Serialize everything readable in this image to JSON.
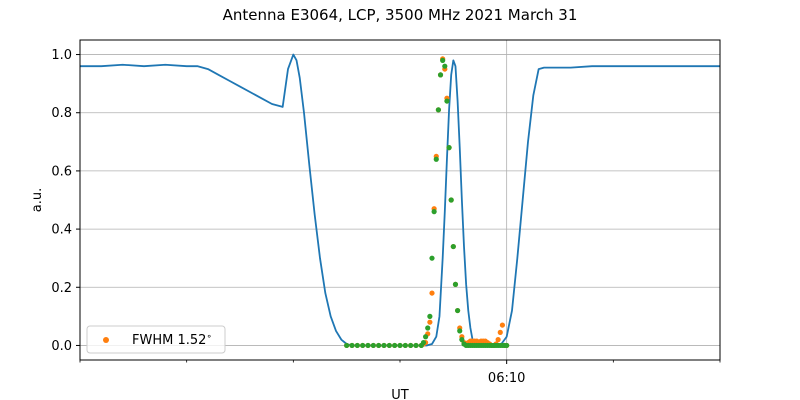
{
  "chart_data": {
    "type": "line",
    "title": "Antenna E3064, LCP, 3500 MHz 2021 March 31",
    "xlabel": "UT",
    "ylabel": "a.u.",
    "ylim": [
      -0.05,
      1.05
    ],
    "yticks": [
      0.0,
      0.2,
      0.4,
      0.6,
      0.8,
      1.0
    ],
    "ytick_labels": [
      "0.0",
      "0.2",
      "0.4",
      "0.6",
      "0.8",
      "1.0"
    ],
    "xlim_minutes": [
      -40,
      20
    ],
    "xticks_major": [
      {
        "min": 0,
        "label": "06:10"
      }
    ],
    "xticks_minor_minutes": [
      -40,
      -30,
      -20,
      -10,
      10,
      20
    ],
    "grid": true,
    "legend_position": "lower-left",
    "colors": {
      "line": "#1f77b4",
      "orange": "#ff7f0e",
      "green": "#2ca02c",
      "grid": "#b0b0b0"
    },
    "series": [
      {
        "kind": "line",
        "color": "#1f77b4",
        "x": [
          -40,
          -38,
          -36,
          -34,
          -32,
          -30,
          -29,
          -28,
          -27,
          -26,
          -25,
          -24,
          -23,
          -22,
          -21,
          -20.5,
          -20,
          -19.7,
          -19.4,
          -19,
          -18.5,
          -18,
          -17.5,
          -17,
          -16.5,
          -16,
          -15.5,
          -15,
          -14.5,
          -14,
          -13.5,
          -13,
          -12,
          -11,
          -10,
          -9,
          -8,
          -7.5,
          -7,
          -6.6,
          -6.3,
          -6,
          -5.8,
          -5.6,
          -5.4,
          -5.2,
          -5.0,
          -4.8,
          -4.6,
          -4.4,
          -4.2,
          -4.0,
          -3.8,
          -3.6,
          -3.4,
          -3.2,
          -3.0,
          -2.8,
          -2.6,
          -2.4,
          -2.2,
          -2.0,
          -1.5,
          -1,
          -0.5,
          0,
          0.5,
          1,
          1.5,
          2,
          2.5,
          3,
          3.5,
          4,
          6,
          8,
          10,
          12,
          14,
          16,
          18,
          20
        ],
        "y": [
          0.96,
          0.96,
          0.965,
          0.96,
          0.965,
          0.96,
          0.96,
          0.95,
          0.93,
          0.91,
          0.89,
          0.87,
          0.85,
          0.83,
          0.82,
          0.95,
          1.0,
          0.98,
          0.92,
          0.8,
          0.62,
          0.45,
          0.3,
          0.18,
          0.1,
          0.05,
          0.02,
          0.005,
          0.0,
          0.0,
          0.0,
          0.0,
          0.0,
          0.0,
          0.0,
          0.0,
          0.0,
          0.0,
          0.005,
          0.03,
          0.1,
          0.3,
          0.46,
          0.64,
          0.81,
          0.93,
          0.98,
          0.96,
          0.84,
          0.68,
          0.5,
          0.34,
          0.21,
          0.12,
          0.06,
          0.02,
          0.005,
          0.0,
          0.0,
          0.0,
          0.0,
          0.0,
          0.0,
          0.0,
          0.005,
          0.03,
          0.12,
          0.3,
          0.5,
          0.7,
          0.86,
          0.95,
          0.955,
          0.955,
          0.955,
          0.96,
          0.96,
          0.96,
          0.96,
          0.96,
          0.96,
          0.96
        ]
      },
      {
        "kind": "scatter",
        "name": "FWHM 1.52$^\\circ$",
        "color": "#ff7f0e",
        "x": [
          -15,
          -14.5,
          -14,
          -13.5,
          -13,
          -12.5,
          -12,
          -11.5,
          -11,
          -10.5,
          -10,
          -9.5,
          -9,
          -8.5,
          -8,
          -7.8,
          -7.6,
          -7.4,
          -7.2,
          -7.0,
          -6.8,
          -6.6,
          -6.4,
          -6.2,
          -6.0,
          -5.8,
          -5.6,
          -5.4,
          -5.2,
          -5.0,
          -4.8,
          -4.6,
          -4.4,
          -4.2,
          -4.0,
          -3.8,
          -3.6,
          -3.4,
          -3.2,
          -3.0,
          -2.8,
          -2.6,
          -2.4,
          -2.2,
          -2.0,
          -1.8,
          -1.6,
          -1.4,
          -1.2,
          -1.0,
          -0.8,
          -0.6,
          -0.4,
          -0.2,
          0.0
        ],
        "y": [
          0.0,
          0.0,
          0.0,
          0.0,
          0.0,
          0.0,
          0.0,
          0.0,
          0.0,
          0.0,
          0.0,
          0.0,
          0.0,
          0.0,
          0.0,
          0.005,
          0.01,
          0.04,
          0.08,
          0.18,
          0.47,
          0.65,
          0.81,
          0.93,
          0.985,
          0.95,
          0.85,
          0.68,
          0.5,
          0.34,
          0.21,
          0.12,
          0.06,
          0.03,
          0.01,
          0.005,
          0.01,
          0.015,
          0.015,
          0.015,
          0.015,
          0.01,
          0.015,
          0.015,
          0.015,
          0.01,
          0.005,
          0.0,
          0.0,
          0.005,
          0.02,
          0.045,
          0.07,
          0.0,
          0.0
        ]
      },
      {
        "kind": "scatter",
        "color": "#2ca02c",
        "x": [
          -15,
          -14.5,
          -14,
          -13.5,
          -13,
          -12.5,
          -12,
          -11.5,
          -11,
          -10.5,
          -10,
          -9.5,
          -9,
          -8.5,
          -8,
          -7.8,
          -7.6,
          -7.4,
          -7.2,
          -7.0,
          -6.8,
          -6.6,
          -6.4,
          -6.2,
          -6.0,
          -5.8,
          -5.6,
          -5.4,
          -5.2,
          -5.0,
          -4.8,
          -4.6,
          -4.4,
          -4.2,
          -4.0,
          -3.8,
          -3.6,
          -3.4,
          -3.2,
          -3.0,
          -2.8,
          -2.6,
          -2.4,
          -2.2,
          -2.0,
          -1.8,
          -1.6,
          -1.4,
          -1.2,
          -1.0,
          -0.8,
          -0.6,
          -0.4,
          -0.2,
          0.0
        ],
        "y": [
          0.0,
          0.0,
          0.0,
          0.0,
          0.0,
          0.0,
          0.0,
          0.0,
          0.0,
          0.0,
          0.0,
          0.0,
          0.0,
          0.0,
          0.0,
          0.01,
          0.03,
          0.06,
          0.1,
          0.3,
          0.46,
          0.64,
          0.81,
          0.93,
          0.98,
          0.96,
          0.84,
          0.68,
          0.5,
          0.34,
          0.21,
          0.12,
          0.05,
          0.02,
          0.005,
          0.0,
          0.0,
          0.0,
          0.0,
          0.0,
          0.0,
          0.0,
          0.0,
          0.0,
          0.0,
          0.0,
          0.0,
          0.0,
          0.0,
          0.0,
          0.0,
          0.0,
          0.0,
          0.0,
          0.0
        ]
      }
    ],
    "legend": [
      {
        "label": "FWHM 1.52$^\\circ$",
        "color": "#ff7f0e",
        "marker": "circle"
      }
    ]
  }
}
